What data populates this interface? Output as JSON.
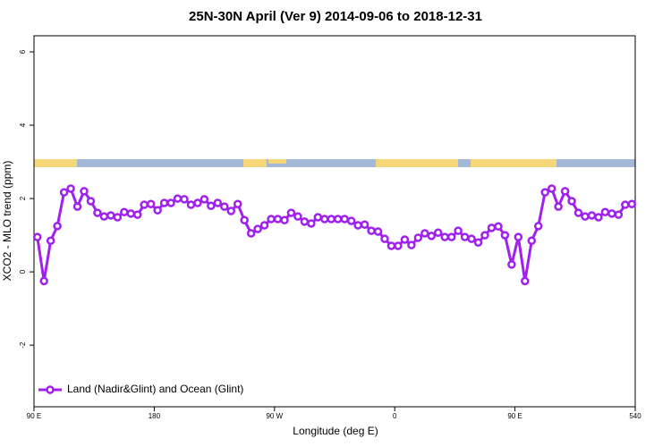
{
  "chart_data": {
    "type": "line",
    "title": "25N-30N April (Ver 9)   2014-09-06 to 2018-12-31",
    "x_label": "Longitude (deg E)",
    "y_label": "XCO2 - MLO trend (ppm)",
    "x": [
      92.5,
      97.5,
      102.5,
      107.5,
      112.5,
      117.5,
      122.5,
      127.5,
      132.5,
      137.5,
      142.5,
      147.5,
      152.5,
      157.5,
      162.5,
      167.5,
      172.5,
      177.5,
      182.5,
      187.5,
      192.5,
      197.5,
      202.5,
      207.5,
      212.5,
      217.5,
      222.5,
      227.5,
      232.5,
      237.5,
      242.5,
      247.5,
      252.5,
      257.5,
      262.5,
      267.5,
      272.5,
      277.5,
      282.5,
      287.5,
      292.5,
      297.5,
      302.5,
      307.5,
      312.5,
      317.5,
      322.5,
      327.5,
      332.5,
      337.5,
      342.5,
      347.5,
      352.5,
      357.5,
      362.5,
      367.5,
      372.5,
      377.5,
      382.5,
      387.5,
      392.5,
      397.5,
      402.5,
      407.5,
      412.5,
      417.5,
      422.5,
      427.5,
      432.5,
      437.5,
      442.5,
      447.5,
      452.5,
      457.5,
      462.5,
      467.5,
      472.5,
      477.5,
      482.5,
      487.5,
      492.5,
      497.5,
      502.5,
      507.5,
      512.5,
      517.5,
      522.5,
      527.5,
      532.5,
      537.5
    ],
    "series": [
      {
        "name": "Land (Nadir&Glint) and Ocean (Glint)",
        "color": "#a020f0",
        "values": [
          0.95,
          -0.25,
          0.85,
          1.25,
          2.17,
          2.27,
          1.78,
          2.2,
          1.93,
          1.61,
          1.51,
          1.54,
          1.49,
          1.63,
          1.59,
          1.56,
          1.83,
          1.85,
          1.68,
          1.88,
          1.88,
          2.0,
          1.98,
          1.83,
          1.88,
          1.98,
          1.8,
          1.88,
          1.78,
          1.66,
          1.85,
          1.41,
          1.05,
          1.17,
          1.27,
          1.44,
          1.44,
          1.41,
          1.61,
          1.51,
          1.37,
          1.32,
          1.49,
          1.44,
          1.44,
          1.44,
          1.44,
          1.39,
          1.27,
          1.29,
          1.12,
          1.1,
          0.9,
          0.71,
          0.71,
          0.88,
          0.73,
          0.93,
          1.05,
          0.98,
          1.07,
          0.95,
          0.95,
          1.12,
          0.95,
          0.9,
          0.8,
          1.0,
          1.2,
          1.24,
          1.0,
          0.2,
          0.95,
          -0.25,
          0.85,
          1.25,
          2.17,
          2.27,
          1.78,
          2.2,
          1.93,
          1.61,
          1.51,
          1.54,
          1.49,
          1.63,
          1.59,
          1.56,
          1.83,
          1.85
        ]
      }
    ],
    "xlim": [
      90,
      540
    ],
    "xticks": [
      {
        "value": 90,
        "label": "90 E"
      },
      180,
      {
        "value": 270,
        "label": "90 W"
      },
      {
        "value": 360,
        "label": "0"
      },
      {
        "value": 450,
        "label": "90 E"
      },
      540
    ],
    "ylim": [
      -3.68,
      6.44
    ],
    "yticks": [
      -2,
      0,
      2,
      4,
      6
    ],
    "grid": false,
    "legend": "bottom-left"
  }
}
